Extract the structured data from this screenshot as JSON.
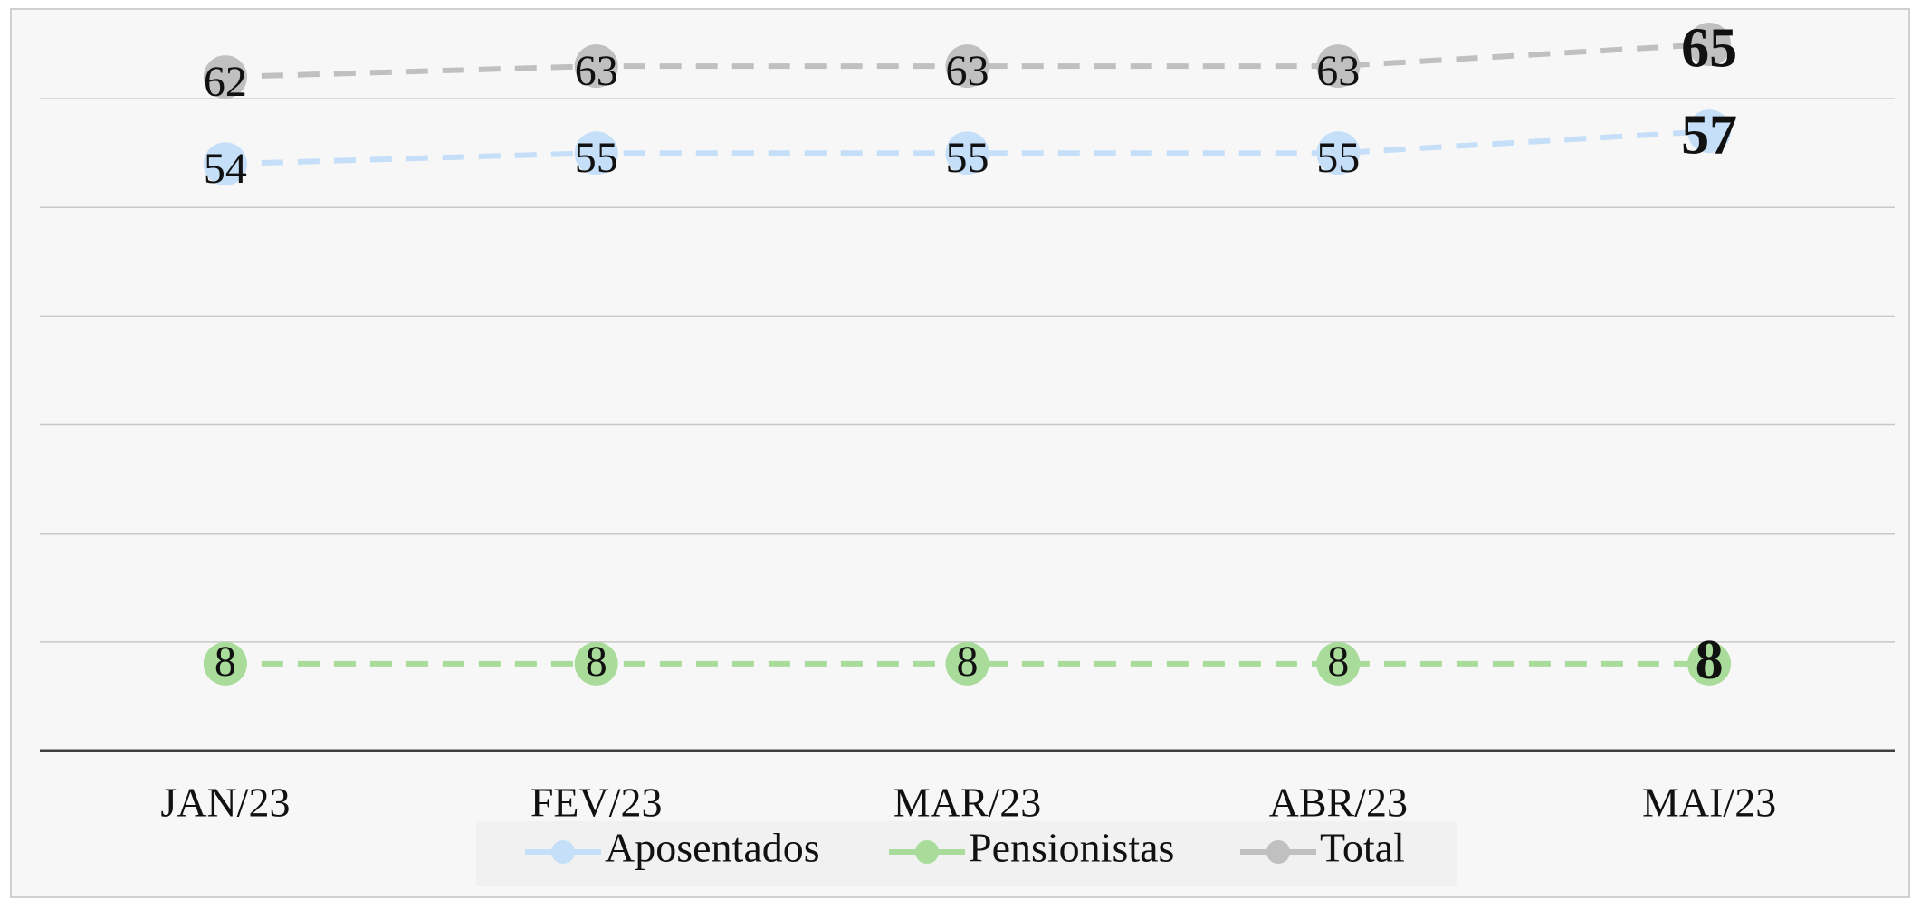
{
  "chart_data": {
    "type": "line",
    "categories": [
      "JAN/23",
      "FEV/23",
      "MAR/23",
      "ABR/23",
      "MAI/23"
    ],
    "series": [
      {
        "name": "Aposentados",
        "color": "#c5dff8",
        "values": [
          54,
          55,
          55,
          55,
          57
        ]
      },
      {
        "name": "Pensionistas",
        "color": "#a9dc9a",
        "values": [
          8,
          8,
          8,
          8,
          8
        ]
      },
      {
        "name": "Total",
        "color": "#c0c0c0",
        "values": [
          62,
          63,
          63,
          63,
          65
        ]
      }
    ],
    "ylim": [
      0,
      68
    ],
    "yticks": [
      0,
      10,
      20,
      30,
      40,
      50,
      60
    ],
    "grid": true,
    "legend": "bottom"
  }
}
